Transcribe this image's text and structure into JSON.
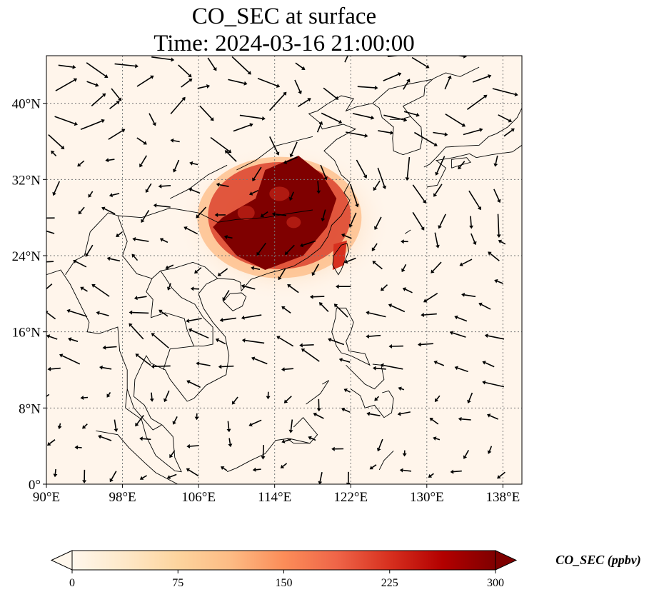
{
  "title": {
    "line1": "CO_SEC at surface",
    "line2": "Time: 2024-03-16 21:00:00"
  },
  "map": {
    "lon_range": [
      90,
      140
    ],
    "lat_range": [
      0,
      45
    ],
    "lon_ticks": [
      90,
      98,
      106,
      114,
      122,
      130,
      138
    ],
    "lat_ticks": [
      0,
      8,
      16,
      24,
      32,
      40
    ],
    "lon_tick_labels": [
      "90°E",
      "98°E",
      "106°E",
      "114°E",
      "122°E",
      "130°E",
      "138°E"
    ],
    "lat_tick_labels": [
      "0°",
      "8°N",
      "16°N",
      "24°N",
      "32°N",
      "40°N"
    ],
    "gridlines": true,
    "background_color": "#fff5eb",
    "plume": {
      "core_color": "#7f0000",
      "mid_color": "#d7301f",
      "edge_color": "#fdbb84",
      "halo_color": "#fdd9b5",
      "core_region_lonlat": [
        [
          108.5,
          28
        ],
        [
          112,
          30
        ],
        [
          113,
          33
        ],
        [
          116.5,
          34.5
        ],
        [
          119,
          32.5
        ],
        [
          120.5,
          30
        ],
        [
          119.5,
          27
        ],
        [
          117,
          24
        ],
        [
          113,
          22.5
        ],
        [
          110,
          24
        ],
        [
          107.5,
          27
        ]
      ],
      "taiwan_hotspot_lonlat": [
        [
          120.2,
          25.2
        ],
        [
          121.6,
          25.6
        ],
        [
          121.3,
          23
        ],
        [
          120.1,
          22.5
        ]
      ]
    }
  },
  "colorbar": {
    "label": "CO_SEC (ppbv)",
    "min": 0,
    "max": 300,
    "ticks": [
      0,
      75,
      150,
      225,
      300
    ],
    "tick_labels": [
      "0",
      "75",
      "150",
      "225",
      "300"
    ],
    "colors": [
      "#fff7ec",
      "#fee8c8",
      "#fdd49e",
      "#fdbb84",
      "#fc8d59",
      "#ef6548",
      "#d7301f",
      "#b30000",
      "#7f0000"
    ],
    "extend": "both"
  }
}
